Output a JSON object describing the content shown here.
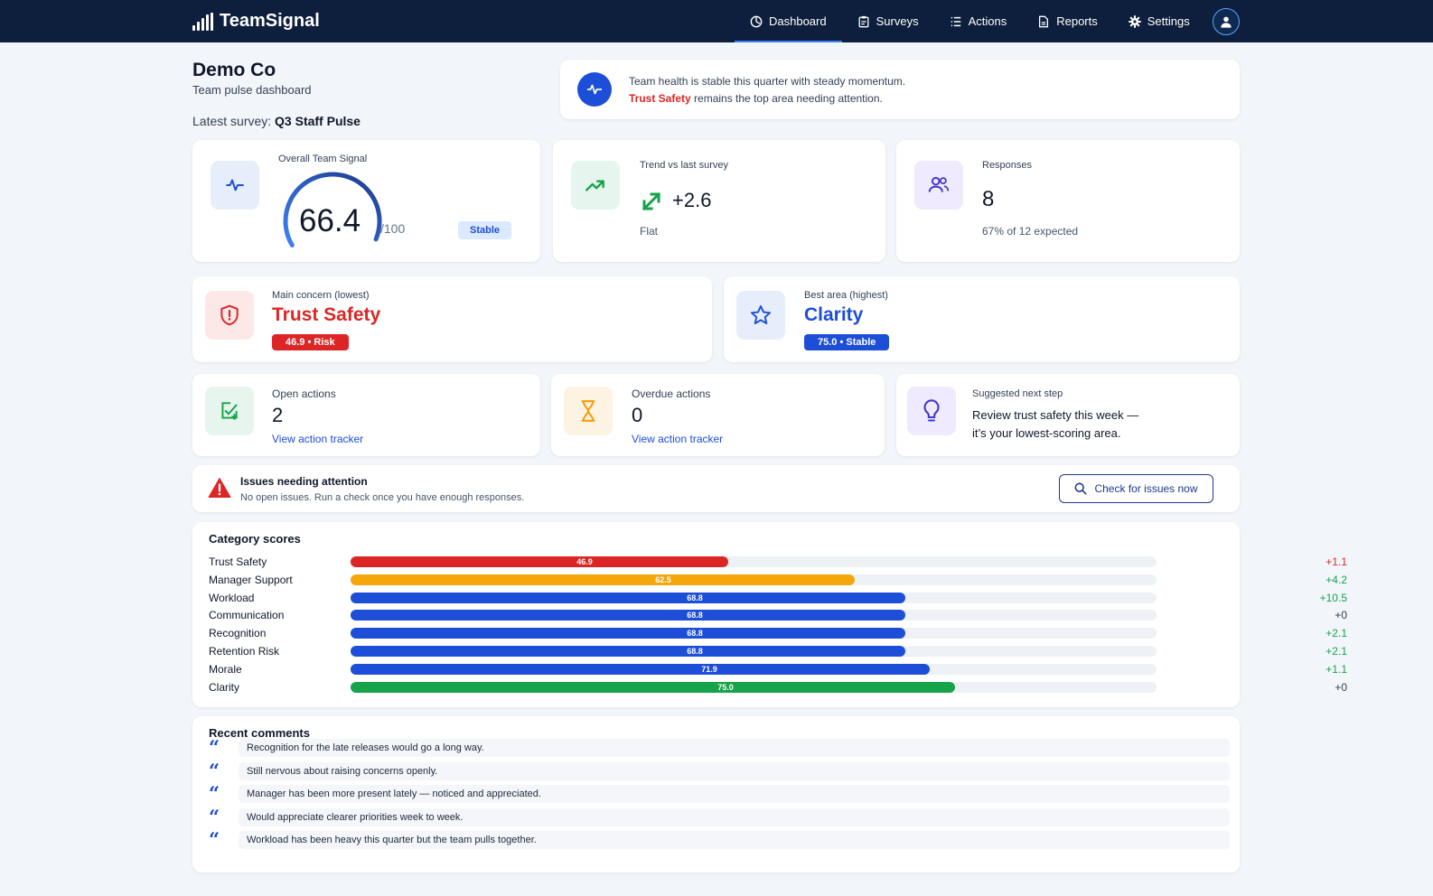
{
  "nav": {
    "brand": "TeamSignal",
    "items": [
      {
        "label": "Dashboard",
        "icon": "dashboard-icon"
      },
      {
        "label": "Surveys",
        "icon": "clipboard-icon"
      },
      {
        "label": "Actions",
        "icon": "list-icon"
      },
      {
        "label": "Reports",
        "icon": "document-icon"
      },
      {
        "label": "Settings",
        "icon": "gear-icon"
      }
    ],
    "active": "Dashboard"
  },
  "header": {
    "org_name": "Demo Co",
    "subtitle": "Team pulse dashboard",
    "survey_label": "Latest survey:",
    "survey_name": "Q3 Staff Pulse"
  },
  "banner": {
    "line1": "Team health is stable this quarter with steady momentum.",
    "highlight": "Trust Safety",
    "line2_rest": " remains the top area needing attention."
  },
  "overall": {
    "label": "Overall Team Signal",
    "score": "66.4",
    "max": "/100",
    "status": "Stable",
    "score_fraction": 0.664
  },
  "trend": {
    "label": "Trend vs last survey",
    "value": "+2.6",
    "status": "Flat"
  },
  "responses": {
    "label": "Responses",
    "value": "8",
    "sub": "67% of 12 expected"
  },
  "concern": {
    "label": "Main concern (lowest)",
    "name": "Trust Safety",
    "badge": "46.9 • Risk"
  },
  "best": {
    "label": "Best area (highest)",
    "name": "Clarity",
    "badge": "75.0 • Stable"
  },
  "open_actions": {
    "label": "Open actions",
    "value": "2",
    "link": "View action tracker"
  },
  "overdue_actions": {
    "label": "Overdue actions",
    "value": "0",
    "link": "View action tracker"
  },
  "next_step": {
    "label": "Suggested next step",
    "line1": "Review trust safety this week —",
    "line2": "it’s your lowest-scoring area."
  },
  "issues": {
    "title": "Issues needing attention",
    "sub": "No open issues. Run a check once you have enough responses.",
    "button": "Check for issues now"
  },
  "categories": {
    "title": "Category scores",
    "max": 100,
    "items": [
      {
        "name": "Trust Safety",
        "score": 46.9,
        "score_label": "46.9",
        "delta": "+1.1",
        "color": "#dc2626",
        "delta_color": "#dc2626"
      },
      {
        "name": "Manager Support",
        "score": 62.5,
        "score_label": "62.5",
        "delta": "+4.2",
        "color": "#f5a60b",
        "delta_color": "#16a34a"
      },
      {
        "name": "Workload",
        "score": 68.8,
        "score_label": "68.8",
        "delta": "+10.5",
        "color": "#1d4ed8",
        "delta_color": "#16a34a"
      },
      {
        "name": "Communication",
        "score": 68.8,
        "score_label": "68.8",
        "delta": "+0",
        "color": "#1d4ed8",
        "delta_color": "#334155"
      },
      {
        "name": "Recognition",
        "score": 68.8,
        "score_label": "68.8",
        "delta": "+2.1",
        "color": "#1d4ed8",
        "delta_color": "#16a34a"
      },
      {
        "name": "Retention Risk",
        "score": 68.8,
        "score_label": "68.8",
        "delta": "+2.1",
        "color": "#1d4ed8",
        "delta_color": "#16a34a"
      },
      {
        "name": "Morale",
        "score": 71.9,
        "score_label": "71.9",
        "delta": "+1.1",
        "color": "#1d4ed8",
        "delta_color": "#16a34a"
      },
      {
        "name": "Clarity",
        "score": 75.0,
        "score_label": "75.0",
        "delta": "+0",
        "color": "#16a34a",
        "delta_color": "#334155"
      }
    ]
  },
  "comments": {
    "title": "Recent comments",
    "items": [
      "Recognition for the late releases would go a long way.",
      "Still nervous about raising concerns openly.",
      "Manager has been more present lately — noticed and appreciated.",
      "Would appreciate clearer priorities week to week.",
      "Workload has been heavy this quarter but the team pulls together."
    ]
  },
  "colors": {
    "nav_bg": "#0d1f3c",
    "accent": "#1d4ed8",
    "risk": "#dc2626",
    "good": "#16a34a",
    "warn": "#f5a60b"
  }
}
